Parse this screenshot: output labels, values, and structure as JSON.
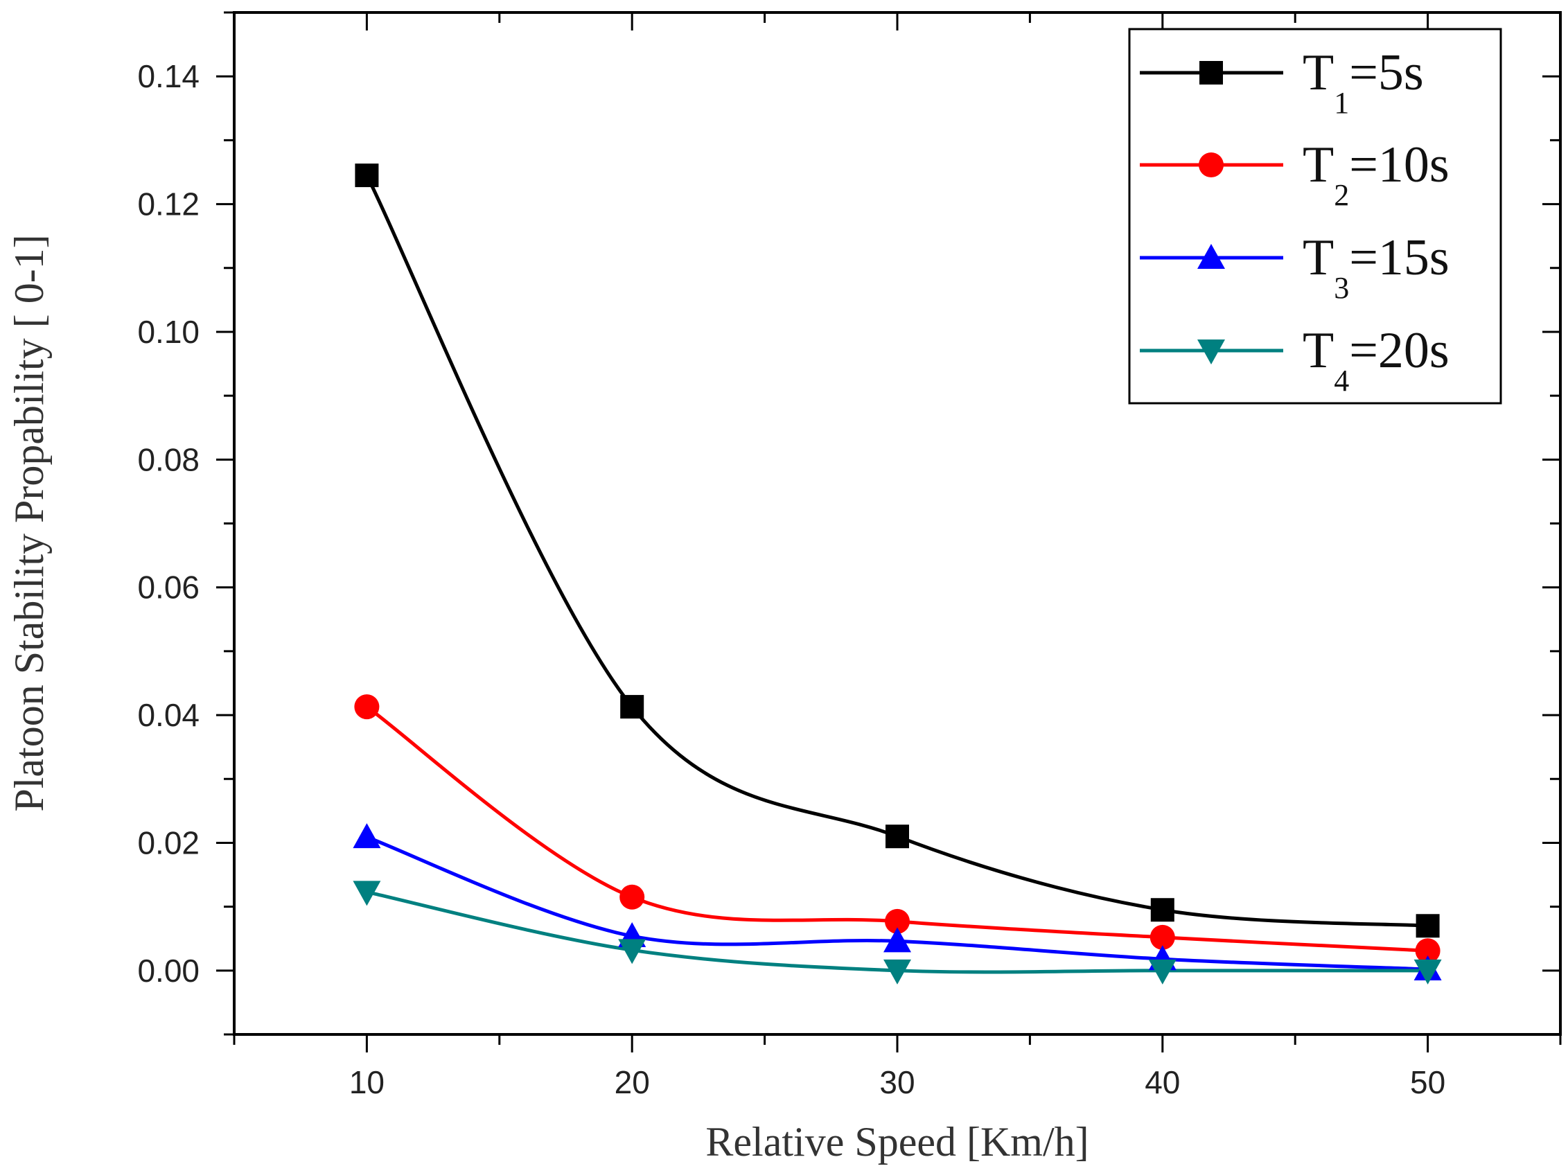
{
  "chart_data": {
    "type": "line",
    "title": "",
    "xlabel": "Relative Speed [Km/h]",
    "ylabel": "Platoon Stability Propability [ 0-1]",
    "xlim": [
      5,
      55
    ],
    "ylim": [
      -0.01,
      0.15
    ],
    "x_ticks": [
      10,
      20,
      30,
      40,
      50
    ],
    "x_tick_labels": [
      "10",
      "20",
      "30",
      "40",
      "50"
    ],
    "y_ticks": [
      0.0,
      0.02,
      0.04,
      0.06,
      0.08,
      0.1,
      0.12,
      0.14
    ],
    "y_tick_labels": [
      "0.00",
      "0.02",
      "0.04",
      "0.06",
      "0.08",
      "0.10",
      "0.12",
      "0.14"
    ],
    "grid": false,
    "legend_position": "top-right",
    "x": [
      10,
      20,
      30,
      40,
      50
    ],
    "series": [
      {
        "name": "T1=5s",
        "label_main": "T",
        "label_sub": "1",
        "label_rest": "=5s",
        "color": "#000000",
        "marker": "square",
        "values": [
          0.1245,
          0.0413,
          0.021,
          0.0095,
          0.007
        ]
      },
      {
        "name": "T2=10s",
        "label_main": "T",
        "label_sub": "2",
        "label_rest": "=10s",
        "color": "#ff0000",
        "marker": "circle",
        "values": [
          0.0413,
          0.0115,
          0.0077,
          0.0052,
          0.0031
        ]
      },
      {
        "name": "T3=15s",
        "label_main": "T",
        "label_sub": "3",
        "label_rest": "=15s",
        "color": "#0000ff",
        "marker": "triangle-up",
        "values": [
          0.0209,
          0.0054,
          0.0046,
          0.0018,
          0.0002
        ]
      },
      {
        "name": "T4=20s",
        "label_main": "T",
        "label_sub": "4",
        "label_rest": "=20s",
        "color": "#008080",
        "marker": "triangle-down",
        "values": [
          0.0123,
          0.0032,
          0.0,
          0.0,
          0.0
        ]
      }
    ]
  }
}
